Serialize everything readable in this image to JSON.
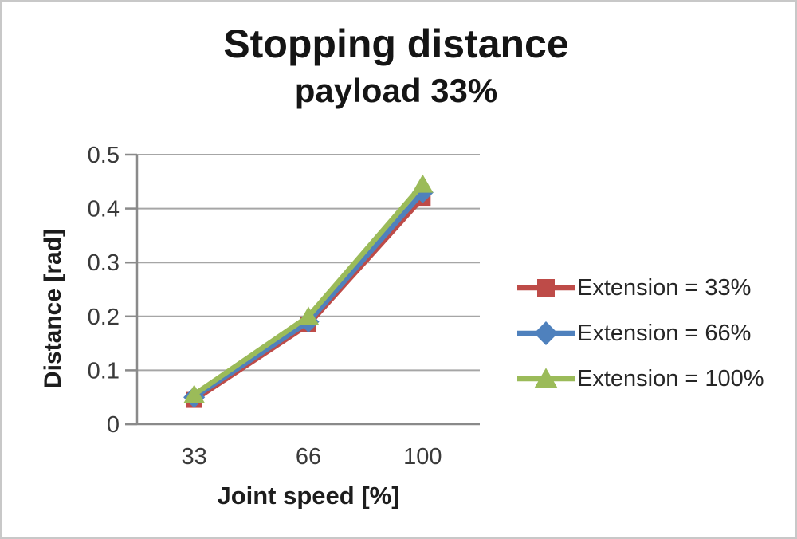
{
  "title": "Stopping distance",
  "subtitle": "payload 33%",
  "chart_data": {
    "type": "line",
    "categories": [
      "33",
      "66",
      "100"
    ],
    "series": [
      {
        "name": "Extension = 33%",
        "marker": "square",
        "color": "#be4b48",
        "values": [
          0.045,
          0.185,
          0.42
        ]
      },
      {
        "name": "Extension = 66%",
        "marker": "diamond",
        "color": "#4f81bd",
        "values": [
          0.05,
          0.19,
          0.43
        ]
      },
      {
        "name": "Extension = 100%",
        "marker": "triangle",
        "color": "#9bbb59",
        "values": [
          0.055,
          0.2,
          0.445
        ]
      }
    ],
    "xlabel": "Joint speed [%]",
    "ylabel": "Distance [rad]",
    "ylim": [
      0,
      0.5
    ],
    "ytick_step": 0.1,
    "ytick_labels": [
      "0",
      "0.1",
      "0.2",
      "0.3",
      "0.4",
      "0.5"
    ],
    "grid": "horizontal",
    "legend_position": "right"
  },
  "colors": {
    "gridline": "#a6a6a6",
    "axis": "#8a8a8a",
    "tick_text": "#3a3a3a",
    "title_text": "#151515",
    "page_border": "#c8c8c8"
  }
}
